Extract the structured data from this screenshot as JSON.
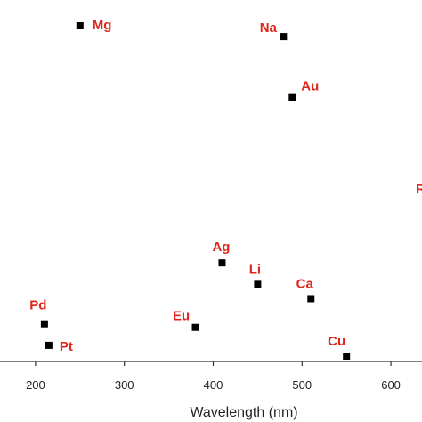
{
  "chart_data": {
    "type": "scatter",
    "title": "",
    "xlabel": "Wavelength (nm)",
    "ylabel": "",
    "xlim": [
      160,
      635
    ],
    "x_ticks": [
      200,
      300,
      400,
      500,
      600
    ],
    "x_tick_labels": [
      "200",
      "300",
      "400",
      "500",
      "600"
    ],
    "grid": false,
    "marker_color": "#000000",
    "label_color": "#e0261b",
    "points": [
      {
        "label": "Mg",
        "x": 250,
        "y": 0.94
      },
      {
        "label": "Na",
        "x": 479,
        "y": 0.91
      },
      {
        "label": "Au",
        "x": 489,
        "y": 0.74
      },
      {
        "label": "Ag",
        "x": 410,
        "y": 0.28
      },
      {
        "label": "Li",
        "x": 450,
        "y": 0.22
      },
      {
        "label": "Ca",
        "x": 510,
        "y": 0.18
      },
      {
        "label": "Pd",
        "x": 210,
        "y": 0.11
      },
      {
        "label": "Pt",
        "x": 215,
        "y": 0.05
      },
      {
        "label": "Eu",
        "x": 380,
        "y": 0.1
      },
      {
        "label": "Cu",
        "x": 550,
        "y": 0.02
      }
    ],
    "cut_off_label": "R"
  }
}
